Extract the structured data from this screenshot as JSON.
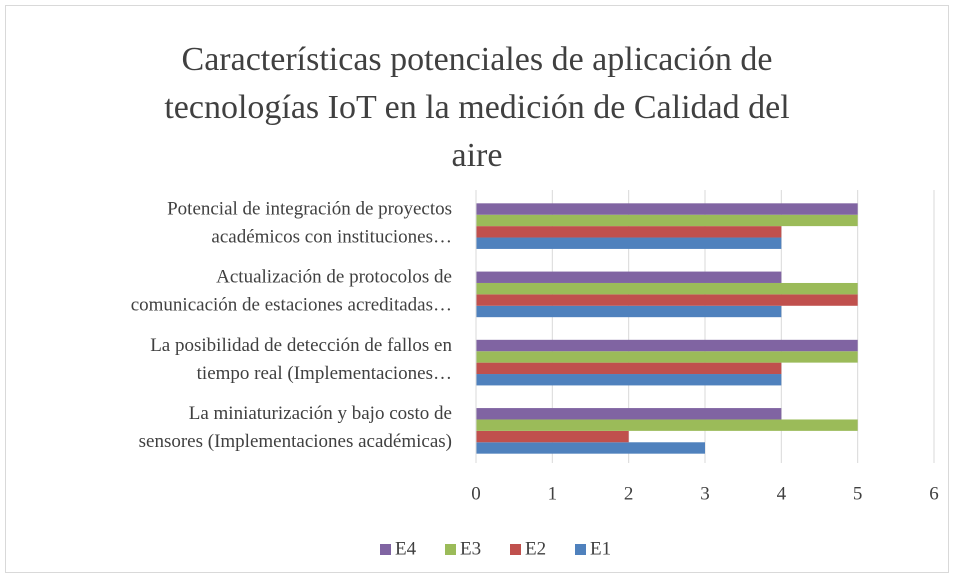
{
  "chart_data": {
    "type": "bar",
    "orientation": "horizontal",
    "title": [
      "Características potenciales de aplicación de",
      "tecnologías IoT en la medición de Calidad del",
      "aire"
    ],
    "categories": [
      [
        "La miniaturización y bajo costo de",
        "sensores (Implementaciones académicas)"
      ],
      [
        "La posibilidad de detección de fallos en",
        "tiempo real (Implementaciones…"
      ],
      [
        "Actualización de protocolos de",
        "comunicación de estaciones acreditadas…"
      ],
      [
        "Potencial de integración de proyectos",
        "académicos con instituciones…"
      ]
    ],
    "series": [
      {
        "name": "E1",
        "color": "#4f81bd",
        "values": [
          3,
          4,
          4,
          4
        ]
      },
      {
        "name": "E2",
        "color": "#c0504d",
        "values": [
          2,
          4,
          5,
          4
        ]
      },
      {
        "name": "E3",
        "color": "#9bbb59",
        "values": [
          5,
          5,
          5,
          5
        ]
      },
      {
        "name": "E4",
        "color": "#8064a2",
        "values": [
          4,
          5,
          4,
          5
        ]
      }
    ],
    "xlim": [
      0,
      6
    ],
    "xticks": [
      0,
      1,
      2,
      3,
      4,
      5,
      6
    ],
    "grid": true,
    "legend": "bottom"
  }
}
